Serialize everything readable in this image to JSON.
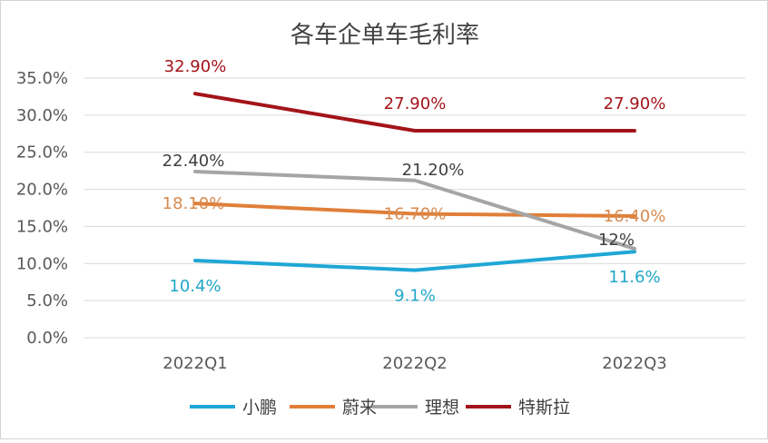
{
  "chart_data": {
    "type": "line",
    "title": "各车企单车毛利率",
    "categories": [
      "2022Q1",
      "2022Q2",
      "2022Q3"
    ],
    "ylim": [
      0,
      35
    ],
    "yticks": [
      "0.0%",
      "5.0%",
      "10.0%",
      "15.0%",
      "20.0%",
      "25.0%",
      "30.0%",
      "35.0%"
    ],
    "ytick_values": [
      0,
      5,
      10,
      15,
      20,
      25,
      30,
      35
    ],
    "grid": true,
    "legend_position": "bottom",
    "series": [
      {
        "name": "小鹏",
        "color": "#1fa7d6",
        "label_color": "#1fa7c8",
        "values": [
          10.4,
          9.1,
          11.6
        ],
        "labels": [
          "10.4%",
          "9.1%",
          "11.6%"
        ]
      },
      {
        "name": "蔚来",
        "color": "#e07f39",
        "label_color": "#d88a4e",
        "values": [
          18.1,
          16.7,
          16.4
        ],
        "labels": [
          "18.10%",
          "16.70%",
          "16.40%"
        ]
      },
      {
        "name": "理想",
        "color": "#a5a5a5",
        "label_color": "#404040",
        "values": [
          22.4,
          21.2,
          12
        ],
        "labels": [
          "22.40%",
          "21.20%",
          "12%"
        ]
      },
      {
        "name": "特斯拉",
        "color": "#a3141a",
        "label_color": "#a3141a",
        "values": [
          32.9,
          27.9,
          27.9
        ],
        "labels": [
          "32.90%",
          "27.90%",
          "27.90%"
        ]
      }
    ]
  }
}
